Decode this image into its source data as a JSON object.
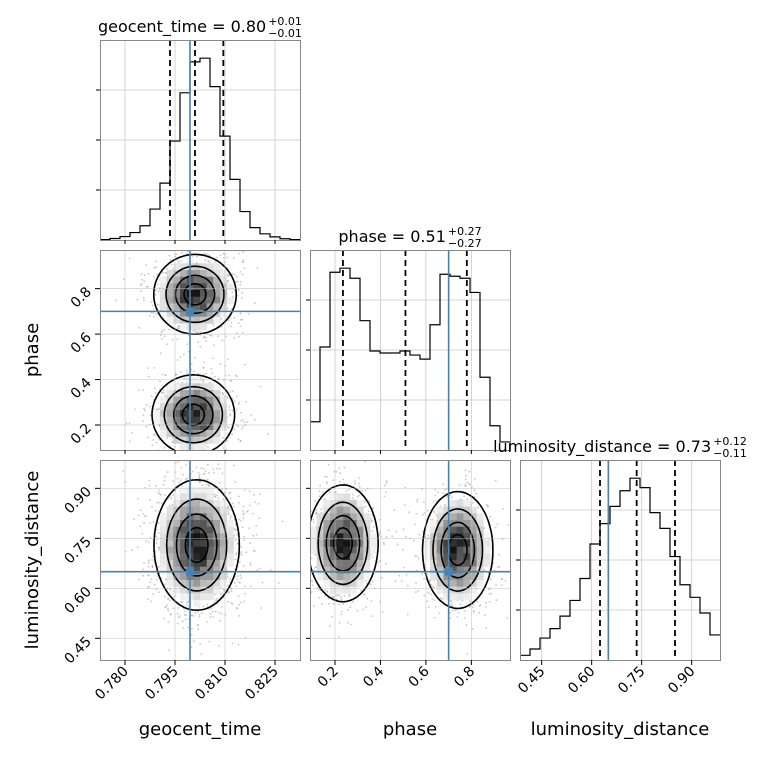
{
  "chart_data": {
    "type": "corner",
    "parameters": [
      "geocent_time",
      "phase",
      "luminosity_distance"
    ],
    "axis_labels": [
      "geocent_time",
      "phase",
      "luminosity_distance"
    ],
    "ranges": [
      [
        0.7725,
        0.8325
      ],
      [
        0.09,
        0.97
      ],
      [
        0.385,
        0.985
      ]
    ],
    "ticks": [
      [
        0.78,
        0.795,
        0.81,
        0.825
      ],
      [
        0.2,
        0.4,
        0.6,
        0.8
      ],
      [
        0.45,
        0.6,
        0.75,
        0.9
      ]
    ],
    "tick_labels": [
      [
        "0.780",
        "0.795",
        "0.810",
        "0.825"
      ],
      [
        "0.2",
        "0.4",
        "0.6",
        "0.8"
      ],
      [
        "0.45",
        "0.60",
        "0.75",
        "0.90"
      ]
    ],
    "truths": [
      0.7995,
      0.7,
      0.65
    ],
    "truth_color": "#4682b4",
    "quantiles": [
      [
        0.7935,
        0.801,
        0.8095
      ],
      [
        0.235,
        0.51,
        0.78
      ],
      [
        0.625,
        0.735,
        0.85
      ]
    ],
    "titles": [
      {
        "name": "geocent_time",
        "text": "geocent_time = 0.80",
        "sup": "+0.01",
        "sub": "−0.01"
      },
      {
        "name": "phase",
        "text": "phase = 0.51",
        "sup": "+0.27",
        "sub": "−0.27"
      },
      {
        "name": "luminosity_distance",
        "text": "luminosity_distance = 0.73",
        "sup": "+0.12",
        "sub": "−0.11"
      }
    ],
    "histograms": [
      {
        "param": "geocent_time",
        "bin_edges": [
          0.7725,
          0.7755,
          0.7785,
          0.7815,
          0.7845,
          0.7875,
          0.7905,
          0.7935,
          0.7965,
          0.7995,
          0.8025,
          0.8055,
          0.8085,
          0.8115,
          0.8145,
          0.8175,
          0.8205,
          0.8235,
          0.8265,
          0.8295,
          0.8325
        ],
        "counts": [
          0.3,
          1.2,
          2.8,
          6.0,
          11.5,
          25.0,
          46.0,
          80.0,
          119.0,
          144.0,
          147.0,
          124.0,
          84.0,
          49.0,
          23.0,
          10.0,
          5.0,
          2.5,
          1.0,
          0.3
        ]
      },
      {
        "param": "phase",
        "bin_edges": [
          0.09,
          0.134,
          0.178,
          0.222,
          0.266,
          0.31,
          0.354,
          0.398,
          0.442,
          0.486,
          0.53,
          0.574,
          0.618,
          0.662,
          0.706,
          0.75,
          0.794,
          0.838,
          0.882,
          0.926,
          0.97
        ],
        "counts": [
          14,
          51,
          88,
          90,
          85,
          64,
          49,
          48,
          48,
          49,
          47,
          45,
          62,
          87,
          86,
          85,
          78,
          36,
          12,
          4
        ]
      },
      {
        "param": "luminosity_distance",
        "bin_edges": [
          0.385,
          0.415,
          0.445,
          0.475,
          0.505,
          0.535,
          0.565,
          0.595,
          0.625,
          0.655,
          0.685,
          0.715,
          0.745,
          0.775,
          0.805,
          0.835,
          0.865,
          0.895,
          0.925,
          0.955,
          0.985
        ],
        "counts": [
          3,
          7,
          14,
          20,
          28,
          38,
          52,
          74,
          87,
          98,
          108,
          116,
          110,
          94,
          84,
          66,
          48,
          40,
          30,
          16
        ]
      }
    ],
    "contour_panels": [
      {
        "x": "geocent_time",
        "y": "phase",
        "modes": [
          {
            "mx": 0.801,
            "my": 0.775,
            "sx": 0.006,
            "sy": 0.085,
            "w": 1.0
          },
          {
            "mx": 0.8005,
            "my": 0.245,
            "sx": 0.006,
            "sy": 0.085,
            "w": 1.0
          }
        ]
      },
      {
        "x": "geocent_time",
        "y": "luminosity_distance",
        "modes": [
          {
            "mx": 0.8015,
            "my": 0.73,
            "sx": 0.0062,
            "sy": 0.095,
            "w": 1.0
          }
        ]
      },
      {
        "x": "phase",
        "y": "luminosity_distance",
        "modes": [
          {
            "mx": 0.235,
            "my": 0.735,
            "sx": 0.075,
            "sy": 0.085,
            "w": 1.0
          },
          {
            "mx": 0.74,
            "my": 0.715,
            "sx": 0.075,
            "sy": 0.085,
            "w": 1.0
          }
        ]
      }
    ]
  }
}
